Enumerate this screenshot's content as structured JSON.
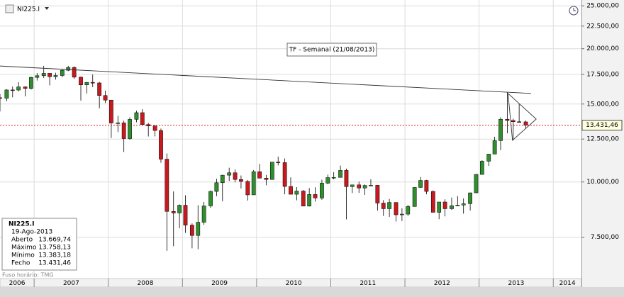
{
  "symbol": "NI225.I",
  "title_box": "TF - Semanal (21/08/2013)",
  "info_box": {
    "title": "NI225.I",
    "date": "19-Ago-2013",
    "rows": [
      [
        "Aberto",
        "13.669,74"
      ],
      [
        "Máximo",
        "13.758,13"
      ],
      [
        "Mínimo",
        "13.383,18"
      ],
      [
        "Fecho",
        "13.431,46"
      ]
    ]
  },
  "timezone": "Fuso horário: TMG",
  "chart_data": {
    "type": "candlestick",
    "log_scale": true,
    "grid": true,
    "up_color": "#2f8f2f",
    "down_color": "#c8191e",
    "xlim": [
      2006.54,
      2014.38
    ],
    "xticks": [
      2006,
      2007,
      2008,
      2009,
      2010,
      2011,
      2012,
      2013,
      2014
    ],
    "ylim": [
      6050,
      25770
    ],
    "yticks": [
      {
        "value": 7500,
        "label": "7.500,00"
      },
      {
        "value": 10000,
        "label": "10.000,00"
      },
      {
        "value": 12500,
        "label": "12.500,00"
      },
      {
        "value": 15000,
        "label": "15.000,00"
      },
      {
        "value": 17500,
        "label": "17.500,00"
      },
      {
        "value": 20000,
        "label": "20.000,00"
      },
      {
        "value": 22500,
        "label": "22.500,00"
      },
      {
        "value": 25000,
        "label": "25.000,00"
      }
    ],
    "last_price": {
      "value": 13431.46,
      "label": "13.431,46",
      "color": "#cc0000"
    },
    "lines": [
      {
        "x": [
          2006.54,
          2013.7
        ],
        "y": [
          18280,
          15850
        ]
      },
      {
        "x": [
          2013.39,
          2013.77,
          2013.45,
          2013.39
        ],
        "y": [
          15850,
          13870,
          12420,
          15850
        ]
      }
    ],
    "x": [
      2006.54,
      2006.63,
      2006.71,
      2006.79,
      2006.88,
      2006.96,
      2007.04,
      2007.13,
      2007.21,
      2007.29,
      2007.38,
      2007.46,
      2007.54,
      2007.63,
      2007.71,
      2007.79,
      2007.88,
      2007.96,
      2008.04,
      2008.13,
      2008.21,
      2008.29,
      2008.38,
      2008.46,
      2008.54,
      2008.63,
      2008.71,
      2008.79,
      2008.88,
      2008.96,
      2009.04,
      2009.13,
      2009.21,
      2009.29,
      2009.38,
      2009.46,
      2009.54,
      2009.63,
      2009.71,
      2009.79,
      2009.88,
      2009.96,
      2010.04,
      2010.13,
      2010.21,
      2010.29,
      2010.38,
      2010.46,
      2010.54,
      2010.63,
      2010.71,
      2010.79,
      2010.88,
      2010.96,
      2011.04,
      2011.13,
      2011.21,
      2011.29,
      2011.38,
      2011.46,
      2011.54,
      2011.63,
      2011.71,
      2011.79,
      2011.88,
      2011.96,
      2012.04,
      2012.13,
      2012.21,
      2012.29,
      2012.38,
      2012.46,
      2012.54,
      2012.63,
      2012.71,
      2012.79,
      2012.88,
      2012.96,
      2013.04,
      2013.13,
      2013.21,
      2013.29,
      2013.38,
      2013.46,
      2013.54,
      2013.63
    ],
    "open": [
      15500,
      15460,
      16140,
      16130,
      16400,
      16270,
      17230,
      17380,
      17600,
      17290,
      17400,
      17880,
      18140,
      17250,
      16570,
      16790,
      16740,
      15680,
      15310,
      13590,
      13600,
      12530,
      13850,
      14340,
      13480,
      13380,
      13070,
      11260,
      8580,
      8510,
      8860,
      7990,
      7570,
      8110,
      8830,
      9520,
      9960,
      10360,
      10490,
      10130,
      10030,
      9350,
      10550,
      10200,
      10130,
      11090,
      11060,
      9770,
      9380,
      9540,
      8820,
      9370,
      9200,
      9940,
      10230,
      10240,
      10620,
      9760,
      9850,
      9690,
      9820,
      9830,
      8960,
      8700,
      8990,
      8430,
      8460,
      8800,
      9720,
      10080,
      9520,
      8540,
      9010,
      8700,
      8840,
      8870,
      8930,
      9450,
      10400,
      11140,
      11560,
      12400,
      13860,
      13770,
      13680,
      13670
    ],
    "high": [
      15800,
      16200,
      16430,
      16810,
      16460,
      17300,
      17620,
      18300,
      17620,
      17650,
      17960,
      18300,
      18260,
      17300,
      16820,
      17490,
      16830,
      16080,
      15310,
      14110,
      13760,
      14000,
      14490,
      14600,
      13600,
      13430,
      13200,
      11600,
      9520,
      8900,
      9330,
      8060,
      8860,
      9010,
      9570,
      10170,
      10380,
      10770,
      10670,
      10340,
      10100,
      10640,
      10980,
      10370,
      11090,
      11410,
      11300,
      10240,
      9740,
      9590,
      9690,
      9730,
      10120,
      10390,
      10520,
      10890,
      10720,
      9850,
      10020,
      9870,
      10140,
      9840,
      9100,
      9150,
      8990,
      8720,
      8880,
      9720,
      10260,
      10110,
      9570,
      9010,
      9140,
      9220,
      9290,
      9180,
      9460,
      10430,
      11200,
      11560,
      12650,
      14000,
      15940,
      13900,
      15000,
      13760
    ],
    "low": [
      14440,
      15220,
      15530,
      16030,
      15610,
      16170,
      16950,
      17180,
      16530,
      17030,
      17240,
      17800,
      17080,
      15270,
      15850,
      16380,
      14670,
      15080,
      12570,
      12960,
      11690,
      12460,
      13640,
      13480,
      12670,
      12670,
      11050,
      6990,
      7160,
      7860,
      7670,
      7080,
      7050,
      8000,
      8740,
      9290,
      9050,
      10050,
      9980,
      9670,
      9080,
      9350,
      10190,
      9830,
      10130,
      10900,
      9380,
      9380,
      9090,
      8810,
      8800,
      9030,
      9120,
      9880,
      10140,
      10230,
      8230,
      9440,
      9450,
      9350,
      9820,
      8620,
      8380,
      8340,
      8140,
      8160,
      8380,
      8800,
      9700,
      9380,
      8540,
      8240,
      8360,
      8650,
      8820,
      8480,
      8620,
      9440,
      10400,
      10870,
      11560,
      11800,
      12880,
      12420,
      13670,
      13190
    ],
    "close": [
      15460,
      16140,
      16130,
      16400,
      16270,
      17230,
      17380,
      17600,
      17290,
      17400,
      17880,
      18140,
      17250,
      16570,
      16790,
      16740,
      15680,
      15310,
      13590,
      13600,
      12530,
      13850,
      14340,
      13480,
      13380,
      13070,
      11260,
      8580,
      8510,
      8860,
      7990,
      7570,
      8110,
      8830,
      9520,
      9960,
      10360,
      10490,
      10130,
      10030,
      9350,
      10550,
      10200,
      10130,
      11090,
      11060,
      9770,
      9380,
      9540,
      8820,
      9370,
      9200,
      9940,
      10230,
      10240,
      10620,
      9760,
      9850,
      9690,
      9820,
      9830,
      8960,
      8700,
      8990,
      8430,
      8460,
      8800,
      9720,
      10080,
      9520,
      8540,
      9010,
      8700,
      8840,
      8870,
      8930,
      9450,
      10400,
      11140,
      11560,
      12400,
      13860,
      13770,
      13680,
      13670,
      13431.46
    ]
  }
}
